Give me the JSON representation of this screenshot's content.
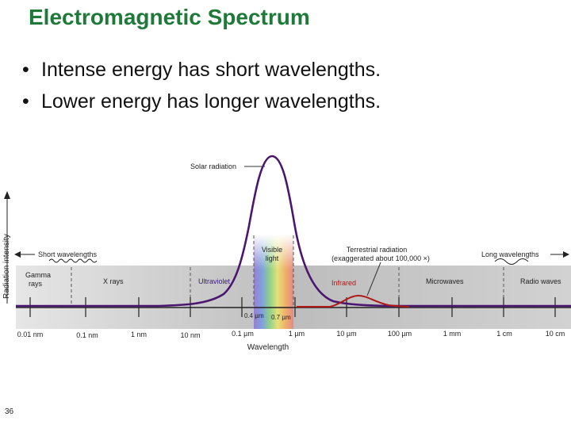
{
  "slide": {
    "title": "Electromagnetic Spectrum",
    "bullets": [
      "Intense energy has short wavelengths.",
      "Lower energy has longer wavelengths."
    ],
    "page_number": "36"
  },
  "figure": {
    "y_axis_label": "Radiation intensity",
    "x_axis_label": "Wavelength",
    "solar_label": "Solar radiation",
    "visible_label_line1": "Visible",
    "visible_label_line2": "light",
    "terrestrial_label_line1": "Terrestrial radiation",
    "terrestrial_label_line2": "(exaggerated about 100,000 ×)",
    "short_label": "Short wavelengths",
    "long_label": "Long wavelengths",
    "bands": {
      "gamma_line1": "Gamma",
      "gamma_line2": "rays",
      "xrays": "X rays",
      "ultraviolet": "Ultraviolet",
      "infrared": "Infrared",
      "microwaves": "Microwaves",
      "radio": "Radio waves"
    },
    "visible_bounds": {
      "low": "0.4 µm",
      "high": "0.7 µm"
    },
    "ticks": [
      "0.01 nm",
      "0.1 nm",
      "1 nm",
      "10 nm",
      "0.1 µm",
      "1 µm",
      "10 µm",
      "100 µm",
      "1 mm",
      "1 cm",
      "10 cm"
    ],
    "colors": {
      "solar_curve": "#4a1670",
      "terrestrial_curve": "#b01818",
      "ultraviolet_text": "#3a1a7a",
      "infrared_text": "#b01818"
    }
  }
}
